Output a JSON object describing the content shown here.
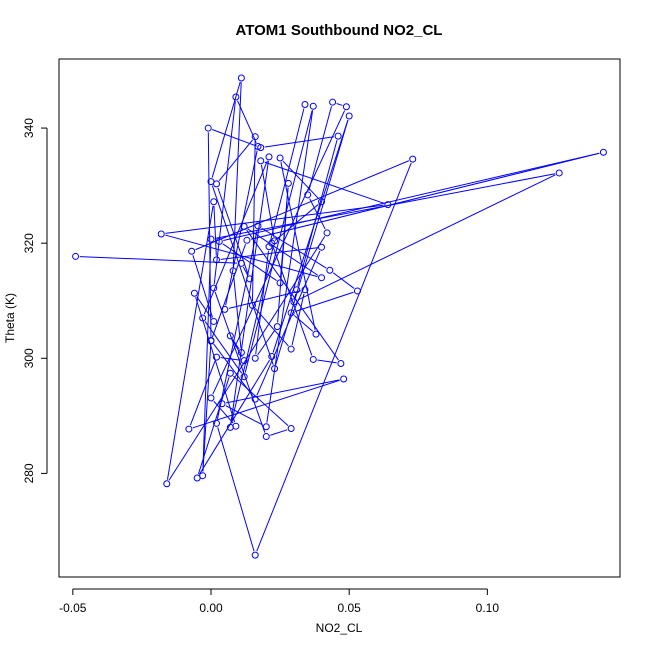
{
  "chart_data": {
    "type": "scatter",
    "title": "ATOM1 Southbound NO2_CL",
    "xlabel": "NO2_CL",
    "ylabel": "Theta (K)",
    "xlim": [
      -0.055,
      0.148
    ],
    "ylim": [
      262,
      352
    ],
    "xticks": [
      -0.05,
      0.0,
      0.05,
      0.1
    ],
    "xtick_labels": [
      "-0.05",
      "0.00",
      "0.05",
      "0.10"
    ],
    "yticks": [
      280,
      300,
      320,
      340
    ],
    "ytick_labels": [
      "280",
      "300",
      "320",
      "340"
    ],
    "grid": false,
    "color": "#0000ff",
    "connected": true,
    "points": [
      [
        -0.049,
        317.7
      ],
      [
        0.011,
        316.5
      ],
      [
        0.014,
        313.8
      ],
      [
        0.002,
        330.3
      ],
      [
        0.016,
        338.5
      ],
      [
        0.015,
        309.2
      ],
      [
        0.029,
        301.6
      ],
      [
        0.034,
        311.9
      ],
      [
        0.005,
        308.5
      ],
      [
        0.017,
        336.8
      ],
      [
        0.009,
        345.4
      ],
      [
        0.001,
        312.2
      ],
      [
        0.02,
        286.4
      ],
      [
        0.029,
        287.8
      ],
      [
        0.007,
        297.4
      ],
      [
        -0.005,
        279.2
      ],
      [
        0.022,
        300.3
      ],
      [
        0.05,
        342.1
      ],
      [
        0.023,
        298.2
      ],
      [
        0.0,
        330.7
      ],
      [
        0.011,
        348.7
      ],
      [
        0.008,
        315.2
      ],
      [
        0.011,
        301.0
      ],
      [
        0.007,
        303.9
      ],
      [
        0.012,
        299.6
      ],
      [
        0.002,
        300.2
      ],
      [
        -0.008,
        287.7
      ],
      [
        0.048,
        296.4
      ],
      [
        0.004,
        292.1
      ],
      [
        0.02,
        288.1
      ],
      [
        0.037,
        343.8
      ],
      [
        0.012,
        296.8
      ],
      [
        -0.003,
        307.0
      ],
      [
        0.021,
        335.0
      ],
      [
        0.007,
        288.0
      ],
      [
        0.023,
        320.4
      ],
      [
        0.018,
        334.3
      ],
      [
        0.064,
        326.7
      ],
      [
        -0.018,
        321.6
      ],
      [
        0.04,
        314.0
      ],
      [
        0.012,
        322.9
      ],
      [
        0.047,
        299.1
      ],
      [
        0.037,
        299.8
      ],
      [
        0.022,
        320.0
      ],
      [
        0.04,
        327.2
      ],
      [
        0.025,
        334.8
      ],
      [
        0.038,
        304.2
      ],
      [
        0.029,
        307.9
      ],
      [
        0.053,
        311.7
      ],
      [
        0.043,
        315.3
      ],
      [
        0.017,
        323.0
      ],
      [
        0.002,
        288.7
      ],
      [
        0.016,
        265.8
      ],
      [
        0.073,
        334.6
      ],
      [
        -0.007,
        318.6
      ],
      [
        0.001,
        306.4
      ],
      [
        -0.006,
        311.3
      ],
      [
        0.009,
        288.2
      ],
      [
        0.0,
        293.1
      ],
      [
        0.049,
        343.7
      ],
      [
        0.044,
        344.5
      ],
      [
        0.035,
        328.4
      ],
      [
        0.042,
        321.8
      ],
      [
        -0.016,
        278.2
      ],
      [
        0.001,
        327.2
      ],
      [
        0.002,
        317.1
      ],
      [
        0.04,
        319.3
      ],
      [
        0.016,
        292.9
      ],
      [
        0.0,
        303.1
      ],
      [
        -0.003,
        279.6
      ],
      [
        0.0,
        320.7
      ],
      [
        0.126,
        332.2
      ],
      [
        0.03,
        309.8
      ],
      [
        0.031,
        311.9
      ],
      [
        0.046,
        338.6
      ],
      [
        0.018,
        336.6
      ],
      [
        -0.001,
        340.0
      ],
      [
        0.0,
        303.0
      ],
      [
        0.013,
        320.5
      ],
      [
        0.142,
        335.8
      ],
      [
        0.003,
        320.3
      ],
      [
        0.025,
        313.1
      ],
      [
        0.028,
        330.4
      ],
      [
        0.024,
        305.5
      ],
      [
        0.016,
        300.0
      ],
      [
        0.021,
        319.4
      ],
      [
        0.034,
        344.1
      ]
    ]
  }
}
